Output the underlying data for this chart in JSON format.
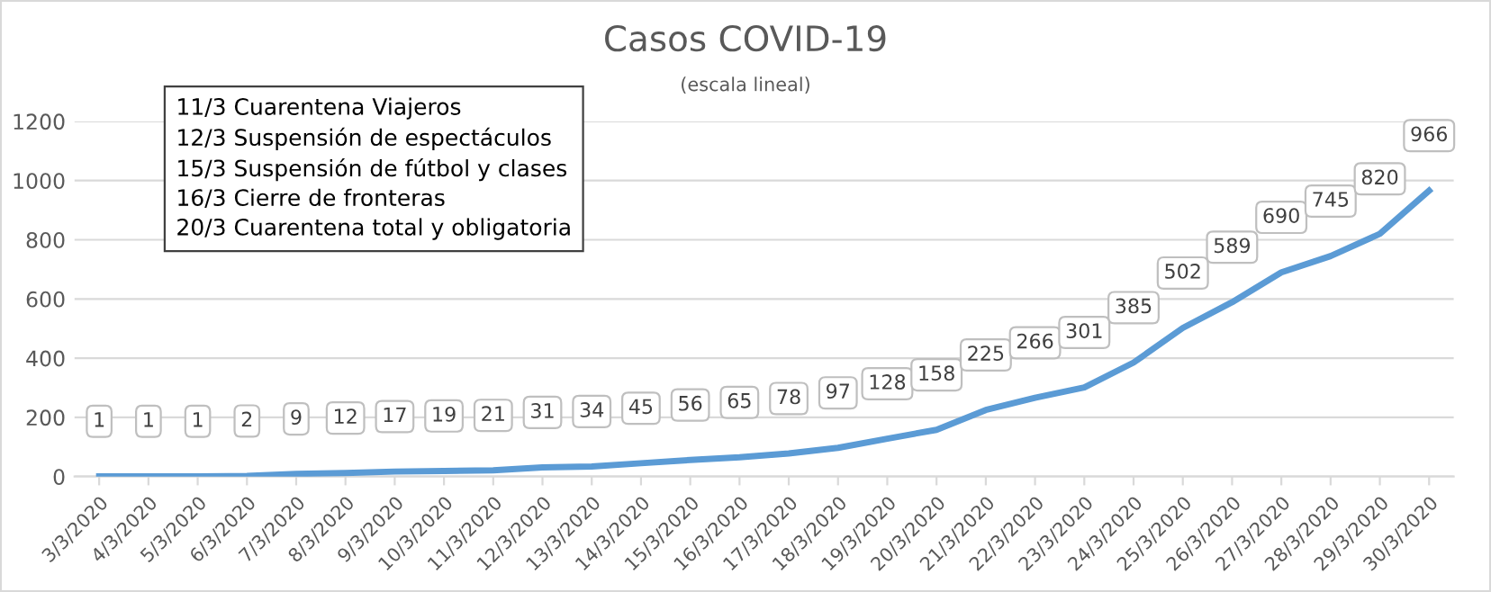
{
  "chart_data": {
    "type": "line",
    "title": "Casos COVID-19",
    "subtitle": "(escala lineal)",
    "categories": [
      "3/3/2020",
      "4/3/2020",
      "5/3/2020",
      "6/3/2020",
      "7/3/2020",
      "8/3/2020",
      "9/3/2020",
      "10/3/2020",
      "11/3/2020",
      "12/3/2020",
      "13/3/2020",
      "14/3/2020",
      "15/3/2020",
      "16/3/2020",
      "17/3/2020",
      "18/3/2020",
      "19/3/2020",
      "20/3/2020",
      "21/3/2020",
      "22/3/2020",
      "23/3/2020",
      "24/3/2020",
      "25/3/2020",
      "26/3/2020",
      "27/3/2020",
      "28/3/2020",
      "29/3/2020",
      "30/3/2020"
    ],
    "series": [
      {
        "color": "#5b9bd5",
        "values": [
          1,
          1,
          1,
          2,
          9,
          12,
          17,
          19,
          21,
          31,
          34,
          45,
          56,
          65,
          78,
          97,
          128,
          158,
          225,
          266,
          301,
          385,
          502,
          589,
          690,
          745,
          820,
          966
        ]
      }
    ],
    "ylim": [
      0,
      1200
    ],
    "yticks": [
      0,
      200,
      400,
      600,
      800,
      1000,
      1200
    ],
    "grid": "y",
    "data_labels": true,
    "marker": "none",
    "line_style": "solid",
    "annotations": [
      "11/3 Cuarentena Viajeros",
      "12/3 Suspensión de espectáculos",
      "15/3 Suspensión de fútbol y clases",
      "16/3 Cierre de fronteras",
      "20/3 Cuarentena total y obligatoria"
    ]
  }
}
